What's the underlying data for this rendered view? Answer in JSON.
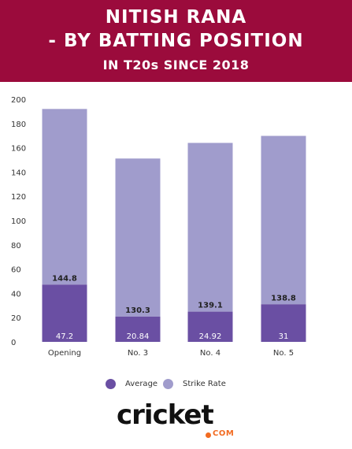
{
  "header": {
    "title_line1": "NITISH RANA",
    "title_line2": "- BY BATTING POSITION",
    "subtitle": "IN T20s SINCE 2018",
    "bg_color": "#9b0b3c"
  },
  "chart_data": {
    "type": "bar",
    "stacked": true,
    "categories": [
      "Opening",
      "No. 3",
      "No. 4",
      "No. 5"
    ],
    "series": [
      {
        "name": "Average",
        "values": [
          47.2,
          20.84,
          24.92,
          31
        ],
        "color": "#6a4fa3"
      },
      {
        "name": "Strike Rate",
        "values": [
          144.8,
          130.3,
          139.1,
          138.8
        ],
        "color": "#a09ccc"
      }
    ],
    "ylim": [
      0,
      200
    ],
    "yticks": [
      0,
      20,
      40,
      60,
      80,
      100,
      120,
      140,
      160,
      180,
      200
    ],
    "grid": false,
    "legend_position": "bottom"
  },
  "logo": {
    "main": "cricket",
    "sub": "COM",
    "accent_color": "#f26b21"
  }
}
